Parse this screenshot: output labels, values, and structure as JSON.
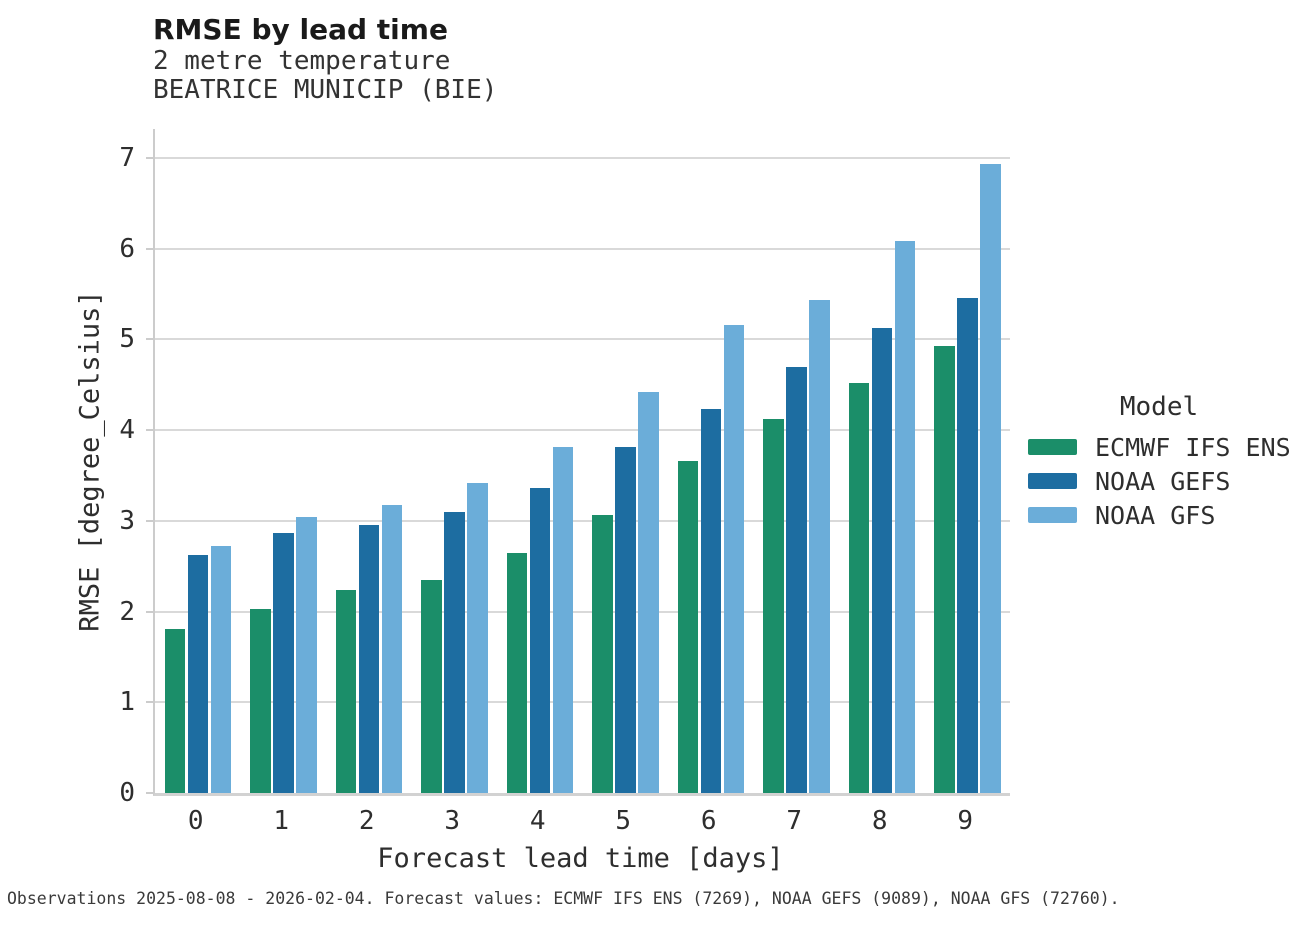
{
  "header": {
    "title": "RMSE by lead time",
    "subtitle_line1": "2 metre temperature",
    "subtitle_line2": "BEATRICE MUNICIP (BIE)"
  },
  "legend": {
    "title": "Model"
  },
  "footer": "Observations 2025-08-08 - 2026-02-04. Forecast values: ECMWF IFS ENS (7269), NOAA GEFS (9089), NOAA GFS (72760).",
  "colors": {
    "ecmwf_green": "#1b8e69",
    "gefs_blue": "#1d6da1",
    "gfs_lightblue": "#6badd9",
    "gridline": "#d9d9d9",
    "axis_spine": "#cccccc"
  },
  "chart_data": {
    "type": "bar",
    "title": "RMSE by lead time",
    "subtitle": [
      "2 metre temperature",
      "BEATRICE MUNICIP (BIE)"
    ],
    "categories": [
      "0",
      "1",
      "2",
      "3",
      "4",
      "5",
      "6",
      "7",
      "8",
      "9"
    ],
    "series": [
      {
        "name": "ECMWF IFS ENS",
        "color": "#1b8e69",
        "values": [
          1.81,
          2.03,
          2.24,
          2.35,
          2.65,
          3.07,
          3.66,
          4.12,
          4.52,
          4.93
        ]
      },
      {
        "name": "NOAA GEFS",
        "color": "#1d6da1",
        "values": [
          2.62,
          2.87,
          2.95,
          3.1,
          3.36,
          3.81,
          4.23,
          4.7,
          5.13,
          5.46
        ]
      },
      {
        "name": "NOAA GFS",
        "color": "#6badd9",
        "values": [
          2.72,
          3.04,
          3.18,
          3.42,
          3.82,
          4.42,
          5.16,
          5.43,
          6.09,
          6.93
        ]
      }
    ],
    "xlabel": "Forecast lead time [days]",
    "ylabel": "RMSE [degree_Celsius]",
    "ylim": [
      0,
      7.32
    ],
    "yticks": [
      0,
      1,
      2,
      3,
      4,
      5,
      6,
      7
    ],
    "grid": true,
    "legend_title": "Model",
    "legend_position": "right"
  }
}
